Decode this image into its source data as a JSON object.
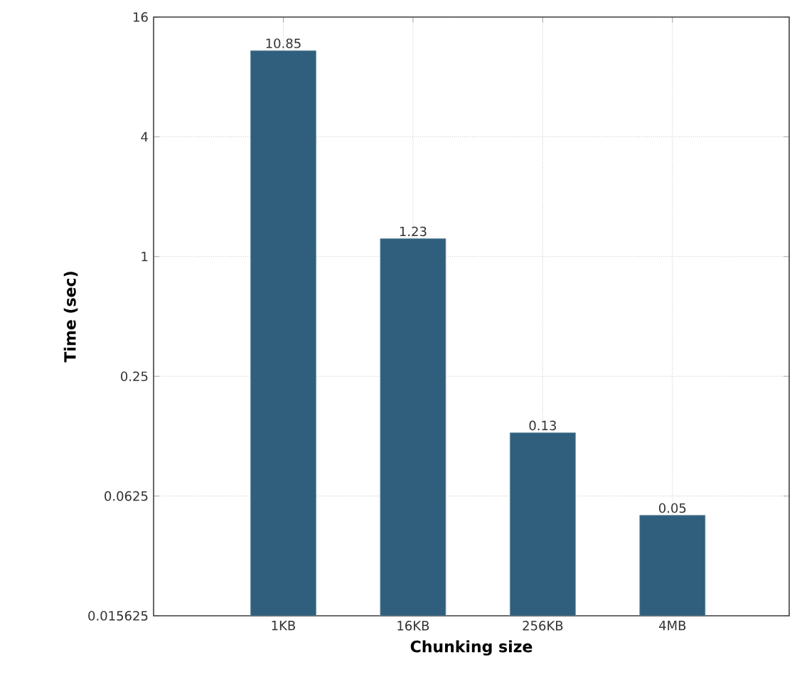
{
  "chart_data": {
    "type": "bar",
    "xlabel": "Chunking size",
    "ylabel": "Time (sec)",
    "categories": [
      "1KB",
      "16KB",
      "256KB",
      "4MB"
    ],
    "values": [
      10.85,
      1.23,
      0.13,
      0.05
    ],
    "color": "#2f5f7d",
    "log": "y",
    "ylim": [
      0.015625,
      16
    ],
    "yticks": [
      0.015625,
      0.0625,
      0.25,
      1,
      4,
      16
    ],
    "grid": true,
    "data_labels": true
  }
}
